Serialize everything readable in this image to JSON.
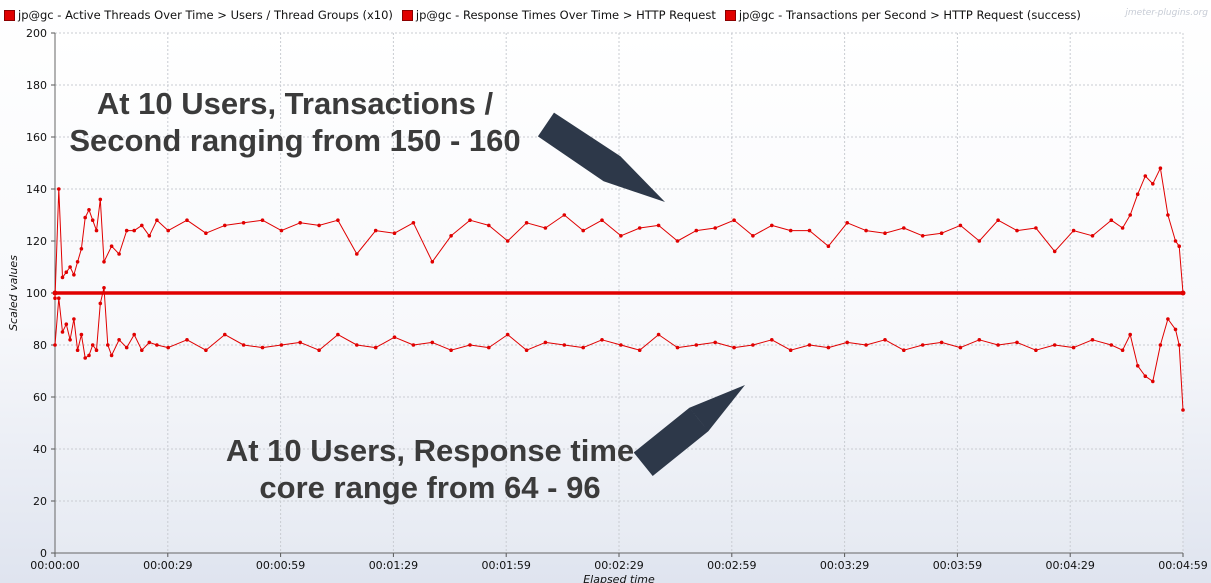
{
  "legend": [
    {
      "label": "jp@gc - Active Threads Over Time > Users / Thread Groups (x10)",
      "color": "#e00000"
    },
    {
      "label": "jp@gc - Response Times Over Time > HTTP Request",
      "color": "#e00000"
    },
    {
      "label": "jp@gc - Transactions per Second > HTTP Request (success)",
      "color": "#e00000"
    }
  ],
  "watermark": "jmeter-plugins.org",
  "annotations": {
    "tps_line1": "At 10 Users, Transactions /",
    "tps_line2": "Second ranging from 150 - 160",
    "rt_line1": "At 10 Users, Response time",
    "rt_line2": "core range from 64 - 96"
  },
  "colors": {
    "series": "#e00000",
    "arrow": "#2d3849",
    "text": "#3b3b3b"
  },
  "chart_data": {
    "type": "line",
    "title": "",
    "xlabel": "Elapsed time",
    "ylabel": "Scaled values",
    "ylim": [
      0,
      200
    ],
    "yticks": [
      0,
      20,
      40,
      60,
      80,
      100,
      120,
      140,
      160,
      180,
      200
    ],
    "xlim_seconds": [
      0,
      299
    ],
    "xtick_labels": [
      "00:00:00",
      "00:00:29",
      "00:00:59",
      "00:01:29",
      "00:01:59",
      "00:02:29",
      "00:02:59",
      "00:03:29",
      "00:03:59",
      "00:04:29",
      "00:04:59"
    ],
    "grid": true,
    "legend_position": "top",
    "series": [
      {
        "name": "jp@gc - Active Threads Over Time > Users / Thread Groups (x10)",
        "x_seconds": [
          0,
          299
        ],
        "values": [
          100,
          100
        ]
      },
      {
        "name": "jp@gc - Transactions per Second > HTTP Request (success)",
        "x_seconds": [
          0,
          1,
          2,
          3,
          4,
          5,
          6,
          7,
          8,
          9,
          10,
          11,
          12,
          13,
          15,
          17,
          19,
          21,
          23,
          25,
          27,
          30,
          35,
          40,
          45,
          50,
          55,
          60,
          65,
          70,
          75,
          80,
          85,
          90,
          95,
          100,
          105,
          110,
          115,
          120,
          125,
          130,
          135,
          140,
          145,
          150,
          155,
          160,
          165,
          170,
          175,
          180,
          185,
          190,
          195,
          200,
          205,
          210,
          215,
          220,
          225,
          230,
          235,
          240,
          245,
          250,
          255,
          260,
          265,
          270,
          275,
          280,
          283,
          285,
          287,
          289,
          291,
          293,
          295,
          297,
          298,
          299
        ],
        "values": [
          98,
          140,
          106,
          108,
          110,
          107,
          112,
          117,
          129,
          132,
          128,
          124,
          136,
          112,
          118,
          115,
          124,
          124,
          126,
          122,
          128,
          124,
          128,
          123,
          126,
          127,
          128,
          124,
          127,
          126,
          128,
          115,
          124,
          123,
          127,
          112,
          122,
          128,
          126,
          120,
          127,
          125,
          130,
          124,
          128,
          122,
          125,
          126,
          120,
          124,
          125,
          128,
          122,
          126,
          124,
          124,
          118,
          127,
          124,
          123,
          125,
          122,
          123,
          126,
          120,
          128,
          124,
          125,
          116,
          124,
          122,
          128,
          125,
          130,
          138,
          145,
          142,
          148,
          130,
          120,
          118,
          100
        ]
      },
      {
        "name": "jp@gc - Response Times Over Time > HTTP Request",
        "x_seconds": [
          0,
          1,
          2,
          3,
          4,
          5,
          6,
          7,
          8,
          9,
          10,
          11,
          12,
          13,
          14,
          15,
          17,
          19,
          21,
          23,
          25,
          27,
          30,
          35,
          40,
          45,
          50,
          55,
          60,
          65,
          70,
          75,
          80,
          85,
          90,
          95,
          100,
          105,
          110,
          115,
          120,
          125,
          130,
          135,
          140,
          145,
          150,
          155,
          160,
          165,
          170,
          175,
          180,
          185,
          190,
          195,
          200,
          205,
          210,
          215,
          220,
          225,
          230,
          235,
          240,
          245,
          250,
          255,
          260,
          265,
          270,
          275,
          280,
          283,
          285,
          287,
          289,
          291,
          293,
          295,
          297,
          298,
          299
        ],
        "values": [
          80,
          98,
          85,
          88,
          82,
          90,
          78,
          84,
          75,
          76,
          80,
          78,
          96,
          102,
          80,
          76,
          82,
          79,
          84,
          78,
          81,
          80,
          79,
          82,
          78,
          84,
          80,
          79,
          80,
          81,
          78,
          84,
          80,
          79,
          83,
          80,
          81,
          78,
          80,
          79,
          84,
          78,
          81,
          80,
          79,
          82,
          80,
          78,
          84,
          79,
          80,
          81,
          79,
          80,
          82,
          78,
          80,
          79,
          81,
          80,
          82,
          78,
          80,
          81,
          79,
          82,
          80,
          81,
          78,
          80,
          79,
          82,
          80,
          78,
          84,
          72,
          68,
          66,
          80,
          90,
          86,
          80,
          55
        ]
      }
    ]
  }
}
